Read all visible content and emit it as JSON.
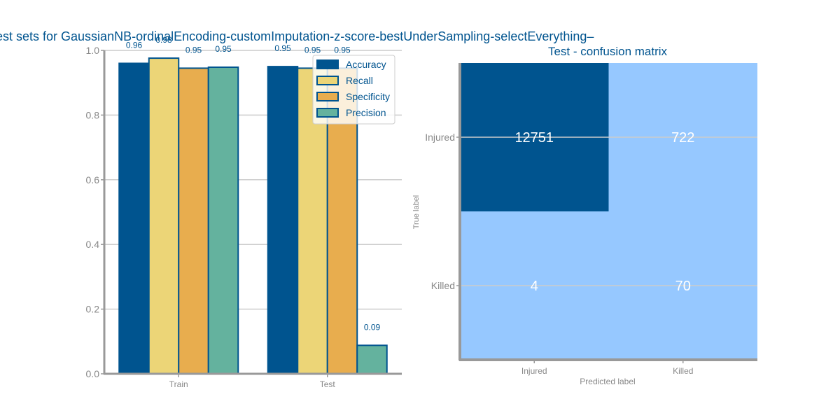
{
  "chart_data": [
    {
      "type": "bar",
      "title": "est sets for GaussianNB-ordinalEncoding-customImputation-z-score-bestUnderSampling-selectEverything–",
      "categories": [
        "Train",
        "Test"
      ],
      "series": [
        {
          "name": "Accuracy",
          "values": [
            0.96,
            0.95
          ],
          "labels": [
            "0.96",
            "0.95"
          ],
          "color": "#00548f"
        },
        {
          "name": "Recall",
          "values": [
            0.976,
            0.945
          ],
          "labels": [
            "0.98",
            "0.95"
          ],
          "color": "#ecd577"
        },
        {
          "name": "Specificity",
          "values": [
            0.945,
            0.945
          ],
          "labels": [
            "0.95",
            "0.95"
          ],
          "color": "#e8ad4e"
        },
        {
          "name": "Precision",
          "values": [
            0.948,
            0.088
          ],
          "labels": [
            "0.95",
            "0.09"
          ],
          "color": "#64b29e"
        }
      ],
      "ylim": [
        0,
        1.0
      ],
      "yticks": [
        "0.0",
        "0.2",
        "0.4",
        "0.6",
        "0.8",
        "1.0"
      ],
      "grid": true,
      "legend_position": "top-right"
    },
    {
      "type": "heatmap",
      "title": "Test - confusion matrix",
      "xlabel": "Predicted label",
      "ylabel": "True label",
      "x_categories": [
        "Injured",
        "Killed"
      ],
      "y_categories": [
        "Injured",
        "Killed"
      ],
      "values": [
        [
          12751,
          722
        ],
        [
          4,
          70
        ]
      ],
      "colors": {
        "high": "#00548f",
        "low": "#96c8ff"
      }
    }
  ]
}
